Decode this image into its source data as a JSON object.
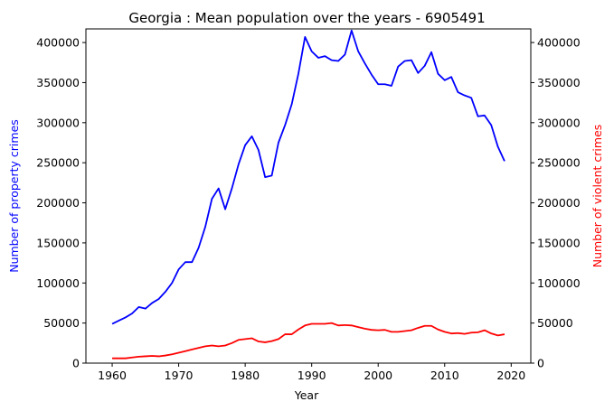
{
  "chart_data": {
    "type": "line",
    "title": "Georgia : Mean population over the years - 6905491",
    "xlabel": "Year",
    "ylabel_left": "Number of property crimes",
    "ylabel_right": "Number of violent crimes",
    "xlim": [
      1956.05,
      2022.95
    ],
    "ylim": [
      0,
      417000
    ],
    "x_ticks": [
      1960,
      1970,
      1980,
      1990,
      2000,
      2010,
      2020
    ],
    "y_ticks_left": [
      0,
      50000,
      100000,
      150000,
      200000,
      250000,
      300000,
      350000,
      400000
    ],
    "y_ticks_right": [
      0,
      50000,
      100000,
      150000,
      200000,
      250000,
      300000,
      350000,
      400000
    ],
    "grid": false,
    "colors": {
      "left": "#0000ff",
      "right": "#ff0000"
    },
    "x": [
      1960,
      1961,
      1962,
      1963,
      1964,
      1965,
      1966,
      1967,
      1968,
      1969,
      1970,
      1971,
      1972,
      1973,
      1974,
      1975,
      1976,
      1977,
      1978,
      1979,
      1980,
      1981,
      1982,
      1983,
      1984,
      1985,
      1986,
      1987,
      1988,
      1989,
      1990,
      1991,
      1992,
      1993,
      1994,
      1995,
      1996,
      1997,
      1998,
      1999,
      2000,
      2001,
      2002,
      2003,
      2004,
      2005,
      2006,
      2007,
      2008,
      2009,
      2010,
      2011,
      2012,
      2013,
      2014,
      2015,
      2016,
      2017,
      2018,
      2019
    ],
    "series": [
      {
        "axis": "left",
        "values": [
          49000,
          53000,
          57000,
          62000,
          70000,
          68000,
          75000,
          80000,
          89000,
          100000,
          117000,
          126000,
          126000,
          144000,
          170000,
          205000,
          218000,
          192000,
          218000,
          248000,
          272000,
          283000,
          266000,
          232000,
          234000,
          275000,
          297000,
          323000,
          361000,
          407000,
          389000,
          381000,
          383000,
          378000,
          377000,
          385000,
          415000,
          389000,
          374000,
          360000,
          348000,
          348000,
          346000,
          370000,
          377000,
          378000,
          362000,
          371000,
          388000,
          361000,
          353000,
          357000,
          338000,
          334000,
          331000,
          308000,
          309000,
          297000,
          270000,
          252000
        ]
      },
      {
        "axis": "right",
        "values": [
          6000,
          6000,
          6000,
          7000,
          8000,
          8500,
          9000,
          8500,
          9500,
          11000,
          13000,
          15000,
          17000,
          19000,
          21000,
          22000,
          21000,
          22000,
          25000,
          29000,
          30000,
          31000,
          27000,
          26000,
          27500,
          30000,
          36000,
          36000,
          42000,
          47000,
          49000,
          49000,
          49000,
          50000,
          47000,
          47500,
          47000,
          45000,
          43000,
          41500,
          41000,
          41500,
          39000,
          39000,
          40000,
          41000,
          44000,
          46500,
          46500,
          42000,
          39000,
          37000,
          37500,
          36500,
          38000,
          38500,
          41000,
          37000,
          34500,
          36000
        ]
      }
    ]
  }
}
